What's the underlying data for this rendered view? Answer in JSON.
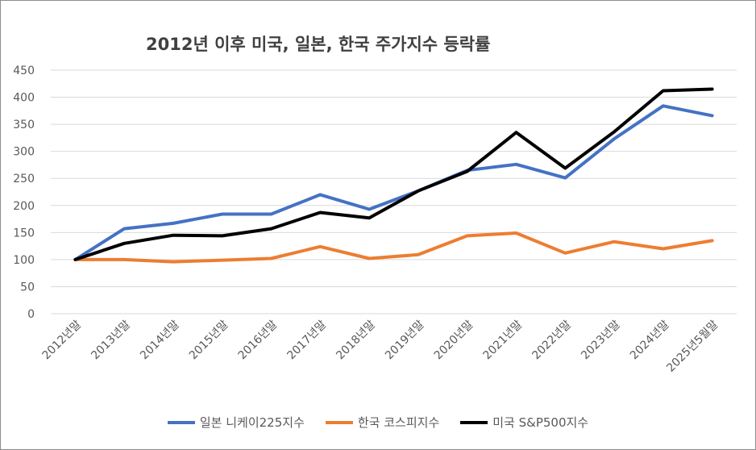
{
  "chart_data": {
    "type": "line",
    "title": "2012년 이후 미국, 일본, 한국 주가지수 등락률",
    "xlabel": "",
    "ylabel": "",
    "ylim": [
      0,
      450
    ],
    "yticks": [
      0,
      50,
      100,
      150,
      200,
      250,
      300,
      350,
      400,
      450
    ],
    "grid": true,
    "legend_position": "bottom",
    "categories": [
      "2012년말",
      "2013년말",
      "2014년말",
      "2015년말",
      "2016년말",
      "2017년말",
      "2018년말",
      "2019년말",
      "2020년말",
      "2021년말",
      "2022년말",
      "2023년말",
      "2024년말",
      "2025년5월말"
    ],
    "series": [
      {
        "name": "일본 니케이225지수",
        "color": "#4472c4",
        "values": [
          100,
          157,
          167,
          184,
          184,
          220,
          193,
          227,
          265,
          276,
          251,
          323,
          384,
          366
        ]
      },
      {
        "name": "한국 코스피지수",
        "color": "#ed7d31",
        "values": [
          100,
          100,
          96,
          99,
          102,
          124,
          102,
          109,
          144,
          149,
          112,
          133,
          120,
          135
        ]
      },
      {
        "name": "미국 S&P500지수",
        "color": "#000000",
        "values": [
          100,
          130,
          145,
          144,
          157,
          187,
          177,
          227,
          263,
          335,
          269,
          336,
          412,
          415
        ]
      }
    ]
  }
}
